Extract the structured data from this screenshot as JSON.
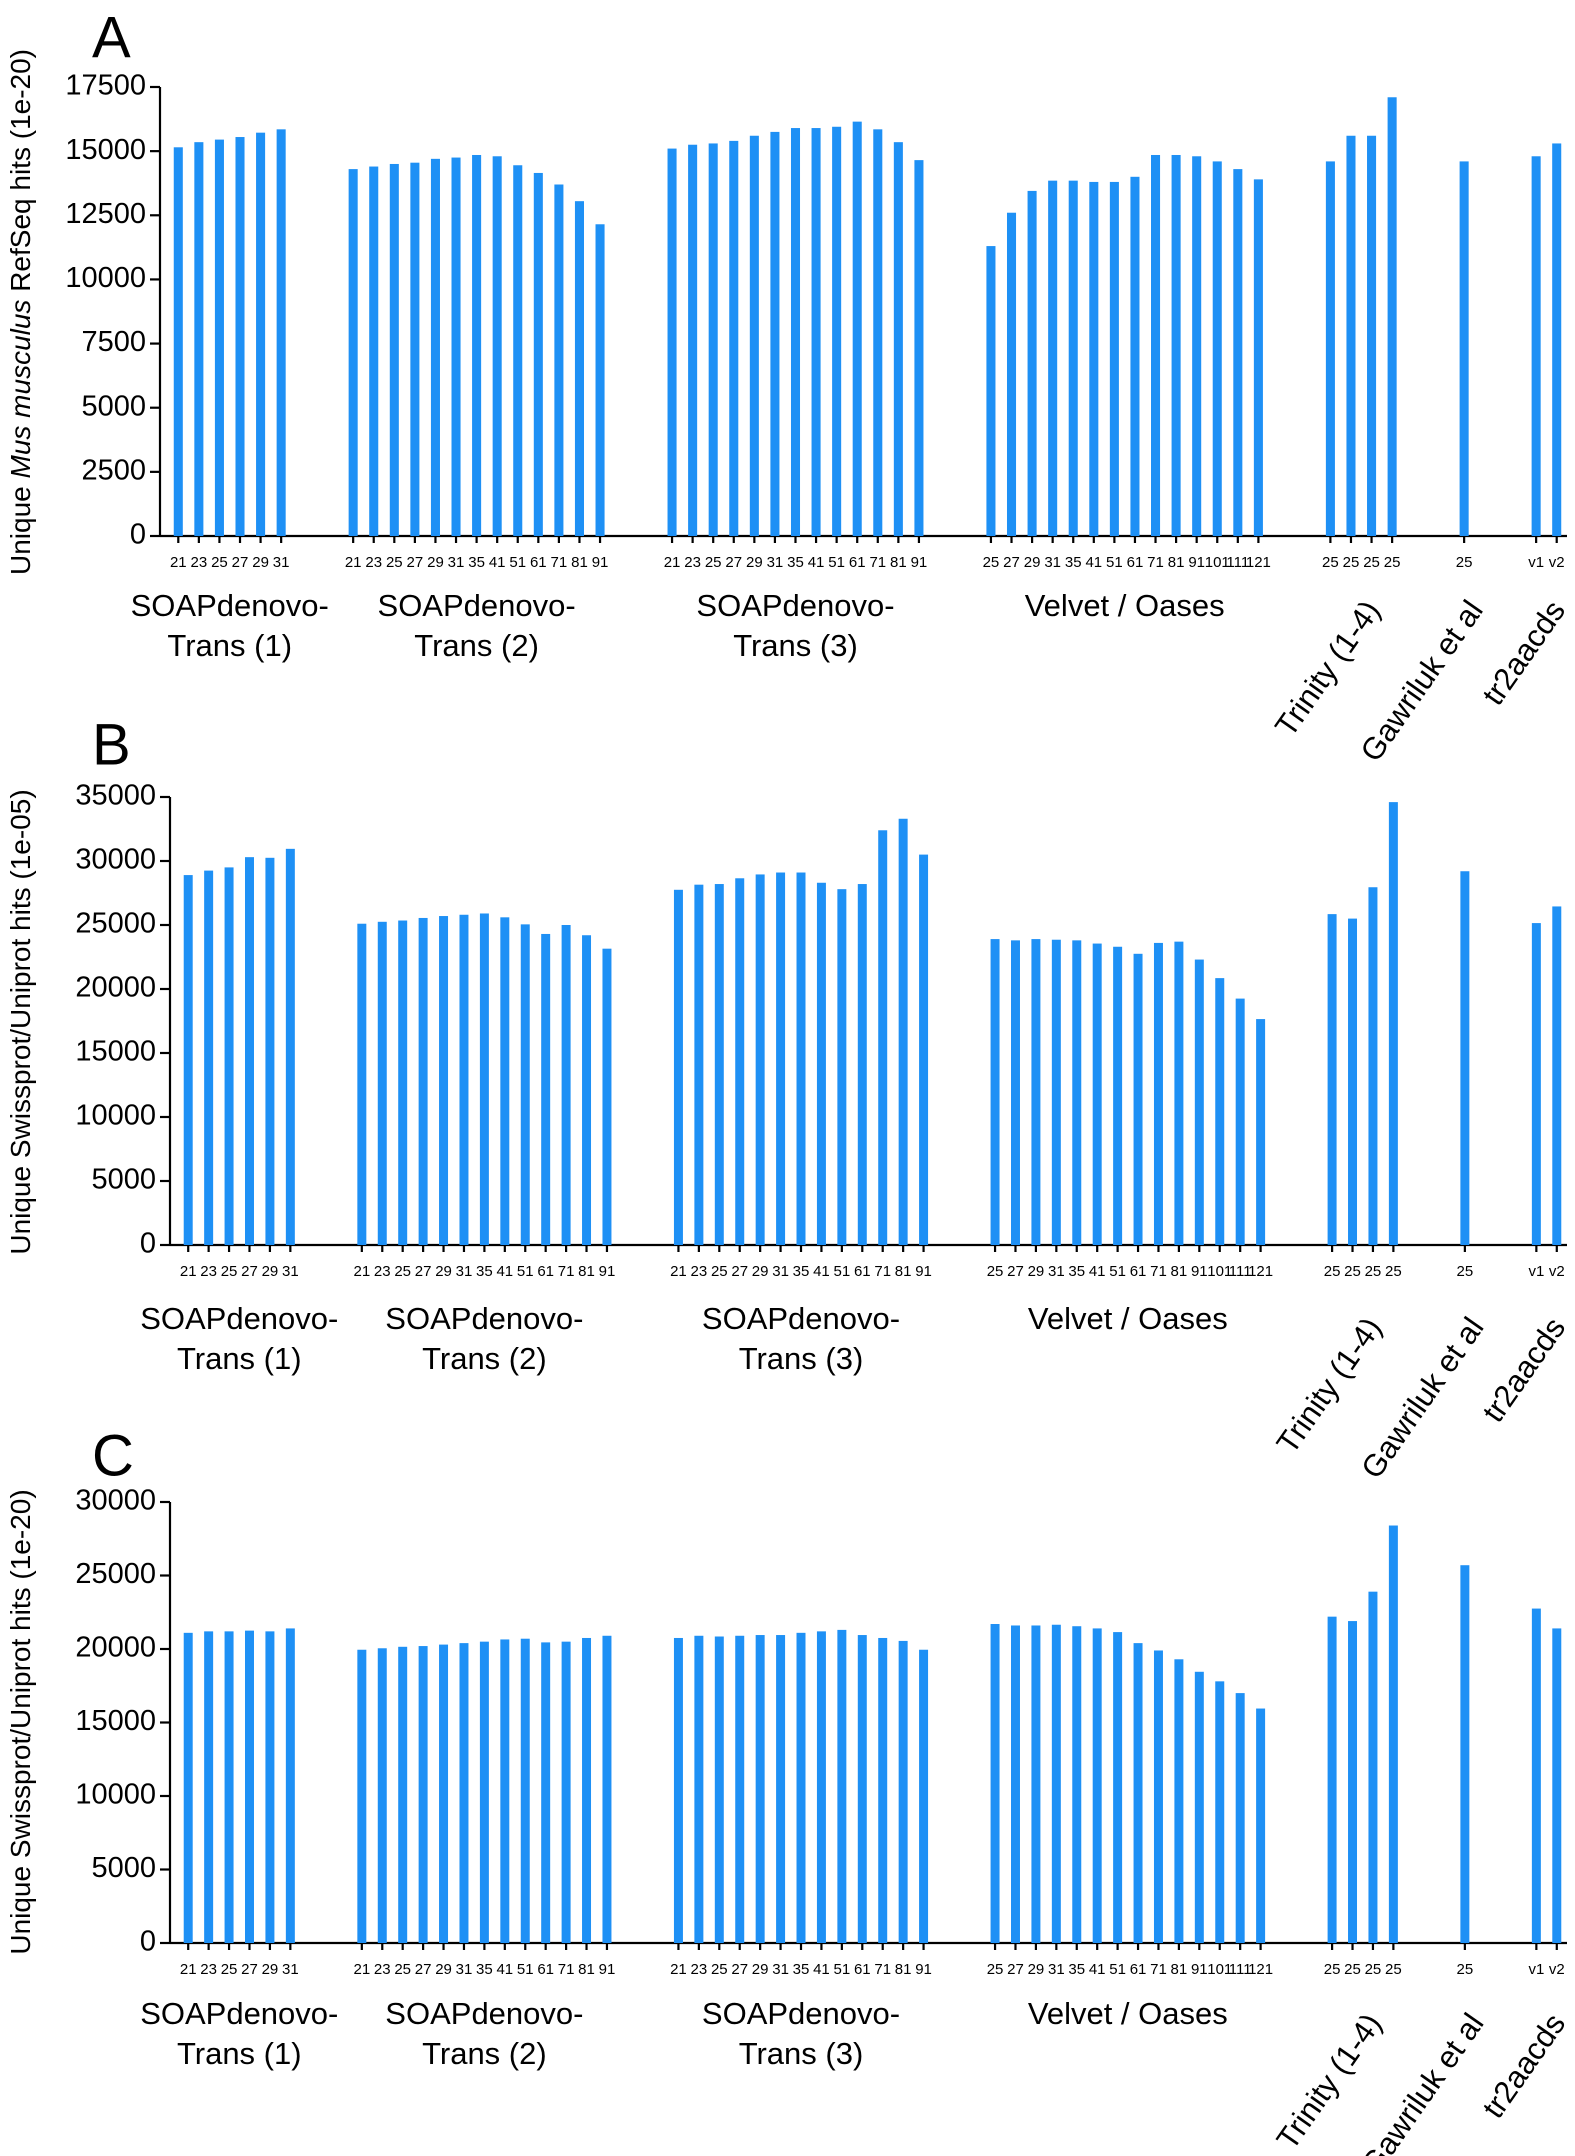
{
  "chart_data": [
    {
      "type": "bar",
      "panel": "A",
      "ylabel_pre": "Unique ",
      "ylabel_italic": "Mus musculus",
      "ylabel_post": " RefSeq hits (1e-20)",
      "ylim": [
        0,
        17500
      ],
      "yticks": [
        0,
        2500,
        5000,
        7500,
        10000,
        12500,
        15000,
        17500
      ],
      "groups": [
        {
          "label_lines": [
            "SOAPdenovo-",
            "Trans (1)"
          ],
          "categories": [
            "21",
            "23",
            "25",
            "27",
            "29",
            "31"
          ],
          "values": [
            15150,
            15350,
            15450,
            15550,
            15720,
            15850
          ]
        },
        {
          "label_lines": [
            "SOAPdenovo-",
            "Trans (2)"
          ],
          "categories": [
            "21",
            "23",
            "25",
            "27",
            "29",
            "31",
            "35",
            "41",
            "51",
            "61",
            "71",
            "81",
            "91"
          ],
          "values": [
            14300,
            14400,
            14500,
            14550,
            14700,
            14750,
            14850,
            14800,
            14450,
            14150,
            13700,
            13050,
            12150
          ]
        },
        {
          "label_lines": [
            "SOAPdenovo-",
            "Trans (3)"
          ],
          "categories": [
            "21",
            "23",
            "25",
            "27",
            "29",
            "31",
            "35",
            "41",
            "51",
            "61",
            "71",
            "81",
            "91"
          ],
          "values": [
            15100,
            15250,
            15300,
            15400,
            15600,
            15750,
            15900,
            15900,
            15950,
            16150,
            15850,
            15350,
            14650
          ]
        },
        {
          "label_lines": [
            "Velvet  / Oases"
          ],
          "categories": [
            "25",
            "27",
            "29",
            "31",
            "35",
            "41",
            "51",
            "61",
            "71",
            "81",
            "91",
            "101",
            "111",
            "121"
          ],
          "values": [
            11300,
            12600,
            13450,
            13850,
            13850,
            13800,
            13800,
            14000,
            14850,
            14850,
            14800,
            14600,
            14300,
            13900
          ]
        },
        {
          "label_lines": [
            "Trinity (1-4)"
          ],
          "rotated": true,
          "categories": [
            "25",
            "25",
            "25",
            "25"
          ],
          "values": [
            14600,
            15600,
            15600,
            17100
          ]
        },
        {
          "label_lines": [
            "Gawriluk et al"
          ],
          "rotated": true,
          "categories": [
            "25"
          ],
          "values": [
            14600
          ]
        },
        {
          "label_lines": [
            "tr2aacds"
          ],
          "rotated": true,
          "categories": [
            "v1",
            "v2"
          ],
          "values": [
            14800,
            15300
          ]
        }
      ]
    },
    {
      "type": "bar",
      "panel": "B",
      "ylabel_pre": "Unique Swissprot/Uniprot hits (1e-05)",
      "ylabel_italic": "",
      "ylabel_post": "",
      "ylim": [
        0,
        35000
      ],
      "yticks": [
        0,
        5000,
        10000,
        15000,
        20000,
        25000,
        30000,
        35000
      ],
      "groups": [
        {
          "label_lines": [
            "SOAPdenovo-",
            "Trans (1)"
          ],
          "categories": [
            "21",
            "23",
            "25",
            "27",
            "29",
            "31"
          ],
          "values": [
            28900,
            29250,
            29500,
            30300,
            30250,
            30950
          ]
        },
        {
          "label_lines": [
            "SOAPdenovo-",
            "Trans (2)"
          ],
          "categories": [
            "21",
            "23",
            "25",
            "27",
            "29",
            "31",
            "35",
            "41",
            "51",
            "61",
            "71",
            "81",
            "91"
          ],
          "values": [
            25100,
            25250,
            25350,
            25550,
            25700,
            25800,
            25900,
            25600,
            25050,
            24300,
            25000,
            24200,
            23150
          ]
        },
        {
          "label_lines": [
            "SOAPdenovo-",
            "Trans (3)"
          ],
          "categories": [
            "21",
            "23",
            "25",
            "27",
            "29",
            "31",
            "35",
            "41",
            "51",
            "61",
            "71",
            "81",
            "91"
          ],
          "values": [
            27750,
            28150,
            28200,
            28650,
            28950,
            29100,
            29100,
            28300,
            27800,
            28200,
            32400,
            33300,
            30500
          ]
        },
        {
          "label_lines": [
            "Velvet  / Oases"
          ],
          "categories": [
            "25",
            "27",
            "29",
            "31",
            "35",
            "41",
            "51",
            "61",
            "71",
            "81",
            "91",
            "101",
            "111",
            "121"
          ],
          "values": [
            23900,
            23800,
            23900,
            23850,
            23800,
            23550,
            23300,
            22750,
            23600,
            23700,
            22300,
            20850,
            19250,
            17650
          ]
        },
        {
          "label_lines": [
            "Trinity (1-4)"
          ],
          "rotated": true,
          "categories": [
            "25",
            "25",
            "25",
            "25"
          ],
          "values": [
            25850,
            25500,
            27950,
            34600
          ]
        },
        {
          "label_lines": [
            "Gawriluk et al"
          ],
          "rotated": true,
          "categories": [
            "25"
          ],
          "values": [
            29200
          ]
        },
        {
          "label_lines": [
            "tr2aacds"
          ],
          "rotated": true,
          "categories": [
            "v1",
            "v2"
          ],
          "values": [
            25150,
            26450
          ]
        }
      ]
    },
    {
      "type": "bar",
      "panel": "C",
      "ylabel_pre": "Unique Swissprot/Uniprot hits (1e-20)",
      "ylabel_italic": "",
      "ylabel_post": "",
      "ylim": [
        0,
        30000
      ],
      "yticks": [
        0,
        5000,
        10000,
        15000,
        20000,
        25000,
        30000
      ],
      "groups": [
        {
          "label_lines": [
            "SOAPdenovo-",
            "Trans (1)"
          ],
          "categories": [
            "21",
            "23",
            "25",
            "27",
            "29",
            "31"
          ],
          "values": [
            21100,
            21200,
            21200,
            21250,
            21200,
            21400
          ]
        },
        {
          "label_lines": [
            "SOAPdenovo-",
            "Trans (2)"
          ],
          "categories": [
            "21",
            "23",
            "25",
            "27",
            "29",
            "31",
            "35",
            "41",
            "51",
            "61",
            "71",
            "81",
            "91"
          ],
          "values": [
            19950,
            20050,
            20150,
            20200,
            20300,
            20400,
            20500,
            20650,
            20700,
            20450,
            20500,
            20750,
            20900
          ]
        },
        {
          "label_lines": [
            "SOAPdenovo-",
            "Trans (3)"
          ],
          "categories": [
            "21",
            "23",
            "25",
            "27",
            "29",
            "31",
            "35",
            "41",
            "51",
            "61",
            "71",
            "81",
            "91"
          ],
          "values": [
            20750,
            20900,
            20850,
            20900,
            20950,
            20950,
            21100,
            21200,
            21300,
            20950,
            20750,
            20550,
            19950
          ]
        },
        {
          "label_lines": [
            "Velvet  / Oases"
          ],
          "categories": [
            "25",
            "27",
            "29",
            "31",
            "35",
            "41",
            "51",
            "61",
            "71",
            "81",
            "91",
            "101",
            "111",
            "121"
          ],
          "values": [
            21700,
            21600,
            21600,
            21650,
            21550,
            21400,
            21150,
            20400,
            19900,
            19300,
            18450,
            17800,
            17000,
            15950
          ]
        },
        {
          "label_lines": [
            "Trinity (1-4)"
          ],
          "rotated": true,
          "categories": [
            "25",
            "25",
            "25",
            "25"
          ],
          "values": [
            22200,
            21900,
            23900,
            28400
          ]
        },
        {
          "label_lines": [
            "Gawriluk et al"
          ],
          "rotated": true,
          "categories": [
            "25"
          ],
          "values": [
            25700
          ]
        },
        {
          "label_lines": [
            "tr2aacds"
          ],
          "rotated": true,
          "categories": [
            "v1",
            "v2"
          ],
          "values": [
            22750,
            21400
          ]
        }
      ]
    }
  ]
}
